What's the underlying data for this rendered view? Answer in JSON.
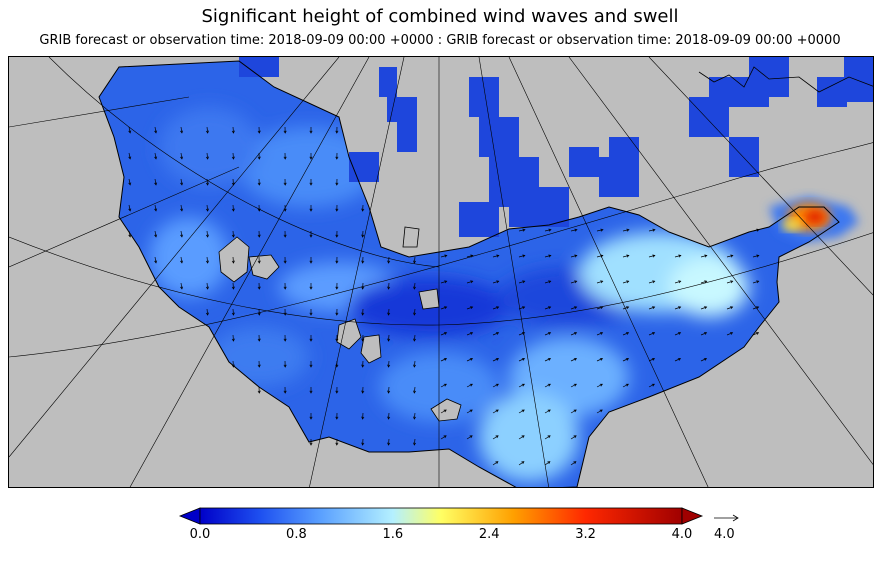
{
  "title": "Significant height of combined wind waves and swell",
  "subtitle": "GRIB forecast or observation time: 2018-09-09 00:00 +0000 : GRIB forecast or observation time: 2018-09-09 00:00 +0000",
  "colorbar": {
    "min": 0.0,
    "max": 4.0,
    "extend": "both",
    "ticks": [
      "0.0",
      "0.8",
      "1.6",
      "2.4",
      "3.2",
      "4.0"
    ],
    "stops": [
      {
        "value": 0.0,
        "color": "#0000c8"
      },
      {
        "value": 0.5,
        "color": "#1e50f0"
      },
      {
        "value": 1.0,
        "color": "#5aa0ff"
      },
      {
        "value": 1.6,
        "color": "#b4f0ff"
      },
      {
        "value": 2.0,
        "color": "#ffff64"
      },
      {
        "value": 2.6,
        "color": "#ffa000"
      },
      {
        "value": 3.2,
        "color": "#ff2800"
      },
      {
        "value": 4.0,
        "color": "#a00000"
      }
    ],
    "under_color": "#0000c8",
    "over_color": "#a00000"
  },
  "vector_reference": {
    "label": "4.0"
  },
  "colors": {
    "land": "#bebebe",
    "coast": "#000000",
    "grid": "#000000"
  }
}
